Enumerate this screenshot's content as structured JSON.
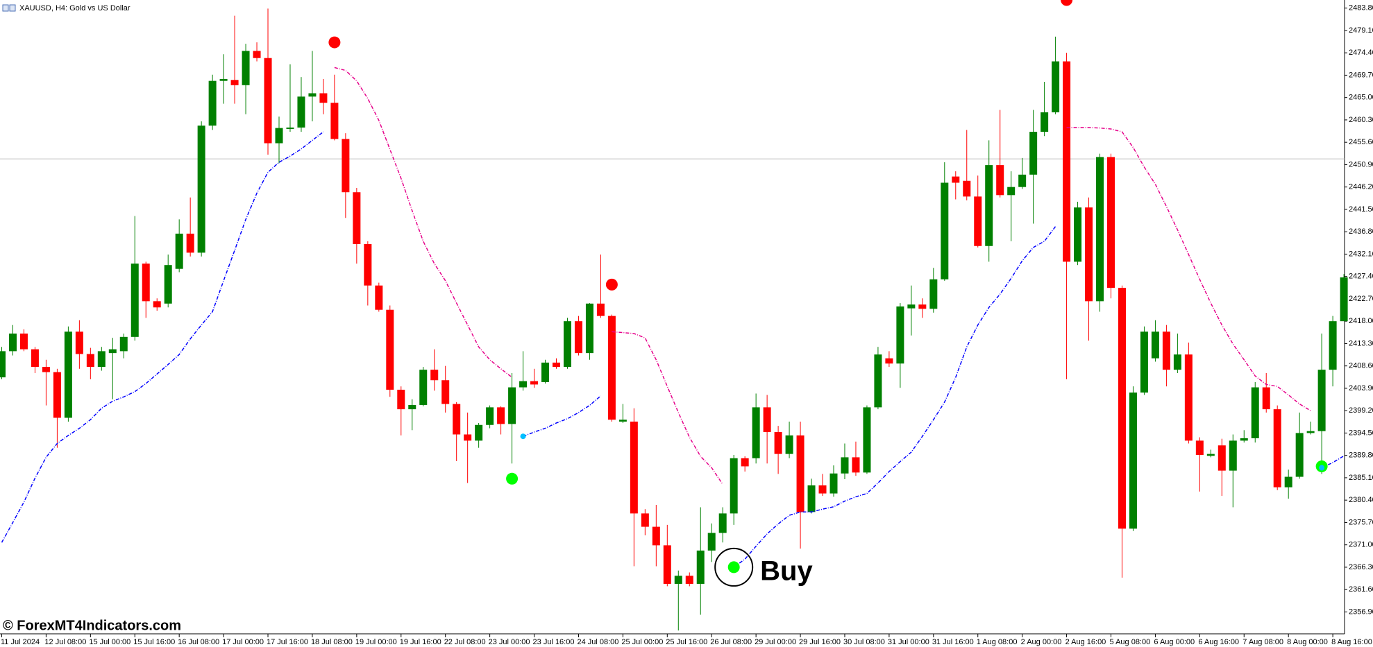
{
  "chart_data": {
    "type": "candlestick",
    "title": "XAUUSD, H4:  Gold vs US Dollar",
    "up_color": "#008000",
    "down_color": "#ff0000",
    "open": [
      2406.2,
      2411.7,
      2415.4,
      2412.1,
      2408.4,
      2407.3,
      2397.7,
      2415.8,
      2411.1,
      2408.4,
      2411.3,
      2411.7,
      2414.7,
      2430.1,
      2422.2,
      2421.7,
      2429.0,
      2436.4,
      2432.4,
      2459.1,
      2468.5,
      2468.7,
      2467.6,
      2474.8,
      2473.3,
      2455.4,
      2458.4,
      2458.7,
      2465.2,
      2465.9,
      2463.9,
      2456.3,
      2445.1,
      2434.2,
      2425.5,
      2420.4,
      2403.6,
      2399.5,
      2400.4,
      2407.8,
      2405.6,
      2400.6,
      2394.2,
      2392.9,
      2396.2,
      2399.9,
      2396.4,
      2404.1,
      2405.4,
      2405.2,
      2409.3,
      2408.4,
      2418.0,
      2411.3,
      2421.7,
      2419.1,
      2396.9,
      2396.9,
      2377.6,
      2374.8,
      2370.9,
      2362.8,
      2364.5,
      2362.8,
      2369.8,
      2373.5,
      2377.6,
      2389.2,
      2389.2,
      2399.9,
      2394.7,
      2390.1,
      2394.0,
      2377.9,
      2383.5,
      2381.8,
      2386.0,
      2389.4,
      2386.2,
      2399.9,
      2410.2,
      2409.1,
      2420.7,
      2421.5,
      2420.6,
      2426.8,
      2448.4,
      2447.5,
      2444.2,
      2433.8,
      2450.8,
      2444.5,
      2446.2,
      2448.8,
      2457.8,
      2461.9,
      2472.6,
      2430.5,
      2441.9,
      2422.2,
      2452.5,
      2425.0,
      2374.4,
      2403.0,
      2410.2,
      2415.8,
      2407.8,
      2411.0,
      2392.9,
      2389.7,
      2391.9,
      2386.6,
      2392.9,
      2393.4,
      2404.1,
      2399.5,
      2383.1,
      2385.3,
      2394.5,
      2394.9,
      2407.8,
      2418.0
    ],
    "high": [
      2412.6,
      2417.2,
      2416.3,
      2412.6,
      2409.9,
      2408.0,
      2416.9,
      2418.2,
      2412.4,
      2412.6,
      2414.5,
      2415.4,
      2440.1,
      2430.5,
      2422.8,
      2432.0,
      2439.4,
      2444.0,
      2460.0,
      2469.8,
      2474.1,
      2482.2,
      2476.3,
      2476.6,
      2483.7,
      2461.0,
      2472.0,
      2469.3,
      2474.8,
      2468.9,
      2469.8,
      2457.5,
      2446.0,
      2434.8,
      2426.1,
      2421.3,
      2404.3,
      2401.6,
      2408.4,
      2412.1,
      2408.6,
      2401.0,
      2398.8,
      2396.6,
      2400.3,
      2400.1,
      2407.1,
      2411.7,
      2408.0,
      2409.9,
      2410.2,
      2418.7,
      2419.1,
      2421.8,
      2432.0,
      2419.4,
      2400.6,
      2399.7,
      2378.5,
      2379.4,
      2375.2,
      2365.6,
      2365.2,
      2378.9,
      2375.5,
      2378.9,
      2389.9,
      2389.6,
      2402.8,
      2402.5,
      2396.0,
      2396.9,
      2396.9,
      2384.9,
      2385.9,
      2387.7,
      2392.3,
      2392.7,
      2400.3,
      2412.6,
      2411.7,
      2421.8,
      2425.5,
      2422.8,
      2429.2,
      2451.4,
      2449.5,
      2458.2,
      2448.6,
      2456.0,
      2462.4,
      2449.5,
      2452.3,
      2462.4,
      2468.3,
      2477.8,
      2474.4,
      2443.1,
      2444.0,
      2453.2,
      2453.2,
      2425.5,
      2404.3,
      2416.9,
      2418.2,
      2417.2,
      2415.4,
      2413.5,
      2393.6,
      2391.0,
      2393.3,
      2394.2,
      2395.1,
      2405.2,
      2407.1,
      2400.3,
      2386.8,
      2398.8,
      2396.9,
      2415.4,
      2419.1,
      2427.9
    ],
    "low": [
      2405.8,
      2410.8,
      2411.7,
      2407.1,
      2400.3,
      2391.4,
      2396.9,
      2408.0,
      2405.8,
      2407.6,
      2401.6,
      2410.2,
      2413.9,
      2418.7,
      2420.2,
      2420.9,
      2428.3,
      2431.6,
      2431.6,
      2458.2,
      2463.7,
      2463.7,
      2461.5,
      2472.6,
      2453.0,
      2451.2,
      2457.8,
      2457.8,
      2460.0,
      2461.5,
      2456.0,
      2439.7,
      2430.1,
      2421.3,
      2420.0,
      2402.1,
      2394.0,
      2395.1,
      2400.1,
      2403.4,
      2398.8,
      2388.6,
      2384.0,
      2391.4,
      2395.5,
      2394.2,
      2388.1,
      2403.4,
      2404.0,
      2404.9,
      2408.0,
      2408.0,
      2410.8,
      2409.9,
      2418.7,
      2396.9,
      2396.6,
      2366.5,
      2373.0,
      2366.5,
      2362.3,
      2353.0,
      2362.3,
      2356.3,
      2367.4,
      2371.5,
      2375.2,
      2386.4,
      2388.1,
      2388.1,
      2385.9,
      2389.2,
      2370.2,
      2377.6,
      2381.3,
      2381.1,
      2384.8,
      2385.5,
      2385.9,
      2399.5,
      2408.4,
      2404.0,
      2415.0,
      2418.7,
      2419.8,
      2426.5,
      2443.6,
      2443.4,
      2433.5,
      2430.5,
      2444.0,
      2434.8,
      2445.8,
      2438.5,
      2456.9,
      2461.5,
      2405.8,
      2429.8,
      2413.9,
      2420.0,
      2422.8,
      2364.1,
      2373.9,
      2402.5,
      2409.5,
      2404.3,
      2407.1,
      2392.3,
      2382.2,
      2389.4,
      2381.3,
      2378.9,
      2392.5,
      2392.5,
      2398.8,
      2382.5,
      2380.7,
      2384.9,
      2394.2,
      2385.9,
      2404.3,
      2418.2
    ],
    "close": [
      2411.7,
      2415.4,
      2412.1,
      2408.4,
      2407.3,
      2397.7,
      2415.8,
      2411.1,
      2408.4,
      2411.7,
      2412.1,
      2414.7,
      2430.1,
      2422.2,
      2420.9,
      2429.8,
      2436.4,
      2432.4,
      2459.1,
      2468.5,
      2468.9,
      2467.6,
      2474.8,
      2473.3,
      2455.4,
      2458.6,
      2458.7,
      2465.2,
      2465.9,
      2463.9,
      2456.3,
      2445.1,
      2434.2,
      2425.5,
      2420.4,
      2403.6,
      2399.5,
      2400.4,
      2407.8,
      2405.6,
      2400.6,
      2394.2,
      2392.9,
      2396.2,
      2399.9,
      2396.4,
      2404.1,
      2405.4,
      2404.7,
      2409.3,
      2408.4,
      2418.0,
      2411.3,
      2421.7,
      2419.1,
      2397.3,
      2397.3,
      2377.6,
      2374.8,
      2370.9,
      2362.8,
      2364.5,
      2362.8,
      2369.8,
      2373.5,
      2377.6,
      2389.2,
      2387.5,
      2399.9,
      2394.7,
      2390.1,
      2394.0,
      2377.9,
      2383.5,
      2381.8,
      2386.0,
      2389.4,
      2386.2,
      2399.9,
      2411.0,
      2409.1,
      2421.1,
      2421.5,
      2420.6,
      2426.8,
      2447.1,
      2447.1,
      2444.2,
      2433.8,
      2450.8,
      2444.5,
      2446.2,
      2448.8,
      2457.8,
      2461.9,
      2472.6,
      2430.5,
      2441.9,
      2422.2,
      2452.5,
      2425.0,
      2374.4,
      2403.0,
      2415.8,
      2415.8,
      2407.8,
      2411.0,
      2392.9,
      2389.9,
      2390.1,
      2386.6,
      2392.9,
      2393.4,
      2404.1,
      2399.5,
      2383.1,
      2385.3,
      2394.5,
      2394.9,
      2407.8,
      2418.0,
      2427.2
    ],
    "series": [
      {
        "color": "#0000ff",
        "values": [
          2371.5,
          2375.7,
          2380.0,
          2385.0,
          2389.4,
          2392.3,
          2394.0,
          2395.5,
          2397.3,
          2399.7,
          2401.2,
          2402.1,
          2403.2,
          2404.9,
          2406.9,
          2408.9,
          2411.0,
          2414.3,
          2417.2,
          2420.0,
          2426.5,
          2432.9,
          2439.4,
          2444.9,
          2449.3,
          2451.4,
          2452.7,
          2454.2,
          2456.0,
          2457.8,
          null,
          null,
          null,
          null,
          null,
          null,
          null,
          null,
          null,
          null,
          null,
          null,
          null,
          null,
          null,
          null,
          null,
          2393.8,
          2394.7,
          2395.5,
          2396.6,
          2397.5,
          2398.8,
          2400.3,
          2402.3,
          null,
          null,
          null,
          null,
          null,
          null,
          null,
          null,
          null,
          null,
          null,
          2366.3,
          2368.0,
          2370.7,
          2373.3,
          2375.4,
          2377.2,
          2377.9,
          2377.9,
          2378.5,
          2379.0,
          2380.2,
          2381.1,
          2381.8,
          2384.0,
          2386.4,
          2388.5,
          2390.5,
          2393.8,
          2397.3,
          2401.0,
          2406.2,
          2412.6,
          2417.2,
          2420.9,
          2423.7,
          2427.0,
          2430.7,
          2433.5,
          2434.8,
          2437.9,
          null,
          null,
          null,
          null,
          null,
          null,
          null,
          null,
          null,
          null,
          null,
          null,
          null,
          null,
          null,
          null,
          null,
          null,
          null,
          null,
          null,
          null,
          null,
          2387.2,
          2388.3,
          2389.7
        ]
      },
      {
        "color": "#e6008a",
        "values": [
          null,
          null,
          null,
          null,
          null,
          null,
          null,
          null,
          null,
          null,
          null,
          null,
          null,
          null,
          null,
          null,
          null,
          null,
          null,
          null,
          null,
          null,
          null,
          null,
          null,
          null,
          null,
          null,
          null,
          null,
          2471.3,
          2470.7,
          2468.5,
          2464.8,
          2460.2,
          2454.1,
          2448.0,
          2441.2,
          2434.8,
          2430.1,
          2426.5,
          2421.8,
          2417.2,
          2412.6,
          2409.9,
          2408.0,
          2406.2,
          null,
          null,
          null,
          null,
          null,
          null,
          null,
          null,
          2415.8,
          2415.6,
          2415.4,
          2414.5,
          2409.9,
          2404.3,
          2398.8,
          2393.6,
          2389.6,
          2387.2,
          2383.7,
          null,
          null,
          null,
          null,
          null,
          null,
          null,
          null,
          null,
          null,
          null,
          null,
          null,
          null,
          null,
          null,
          null,
          null,
          null,
          null,
          null,
          null,
          null,
          null,
          null,
          null,
          null,
          null,
          null,
          null,
          2458.7,
          2458.7,
          2458.7,
          2458.6,
          2458.4,
          2457.8,
          2454.5,
          2450.4,
          2446.8,
          2442.1,
          2437.2,
          2432.0,
          2426.8,
          2421.8,
          2417.2,
          2413.2,
          2409.9,
          2406.5,
          2404.7,
          2404.3,
          2402.5,
          2400.6,
          2399.2,
          null,
          null,
          null
        ]
      }
    ],
    "signals": [
      {
        "color": "#ff0000",
        "marker": "large",
        "x": [
          30,
          55,
          96
        ],
        "values": [
          2476.6,
          2425.7,
          2485.5
        ]
      },
      {
        "color": "#00ff00",
        "marker": "large",
        "x": [
          46,
          66,
          119
        ],
        "values": [
          2384.9,
          2366.3,
          2387.5
        ]
      },
      {
        "color": "#00bfff",
        "marker": "small",
        "x": [
          47,
          119
        ],
        "values": [
          2393.8,
          2387.2
        ]
      }
    ],
    "price_line": 2452.1,
    "annotations": [
      {
        "text": "Buy",
        "x": 66,
        "y": 2366.3
      }
    ],
    "ylim": [
      2352.3,
      2485.5
    ],
    "yticks": [
      {
        "value": 2483.8,
        "label": "2483.80"
      },
      {
        "value": 2479.1,
        "label": "2479.10"
      },
      {
        "value": 2474.4,
        "label": "2474.40"
      },
      {
        "value": 2469.7,
        "label": "2469.70"
      },
      {
        "value": 2465.0,
        "label": "2465.00"
      },
      {
        "value": 2460.3,
        "label": "2460.30"
      },
      {
        "value": 2455.6,
        "label": "2455.60"
      },
      {
        "value": 2450.9,
        "label": "2450.90"
      },
      {
        "value": 2446.2,
        "label": "2446.20"
      },
      {
        "value": 2441.5,
        "label": "2441.50"
      },
      {
        "value": 2436.8,
        "label": "2436.80"
      },
      {
        "value": 2432.1,
        "label": "2432.10"
      },
      {
        "value": 2427.4,
        "label": "2427.40"
      },
      {
        "value": 2422.7,
        "label": "2422.70"
      },
      {
        "value": 2418.0,
        "label": "2418.00"
      },
      {
        "value": 2413.3,
        "label": "2413.30"
      },
      {
        "value": 2408.6,
        "label": "2408.60"
      },
      {
        "value": 2403.9,
        "label": "2403.90"
      },
      {
        "value": 2399.2,
        "label": "2399.20"
      },
      {
        "value": 2394.5,
        "label": "2394.50"
      },
      {
        "value": 2389.8,
        "label": "2389.80"
      },
      {
        "value": 2385.1,
        "label": "2385.10"
      },
      {
        "value": 2380.4,
        "label": "2380.40"
      },
      {
        "value": 2375.7,
        "label": "2375.70"
      },
      {
        "value": 2371.0,
        "label": "2371.00"
      },
      {
        "value": 2366.3,
        "label": "2366.30"
      },
      {
        "value": 2361.6,
        "label": "2361.60"
      },
      {
        "value": 2356.9,
        "label": "2356.90"
      }
    ],
    "xticks": [
      {
        "value": 0,
        "label": "11 Jul 2024"
      },
      {
        "value": 4,
        "label": "12 Jul 08:00"
      },
      {
        "value": 8,
        "label": "15 Jul 00:00"
      },
      {
        "value": 12,
        "label": "15 Jul 16:00"
      },
      {
        "value": 16,
        "label": "16 Jul 08:00"
      },
      {
        "value": 20,
        "label": "17 Jul 00:00"
      },
      {
        "value": 24,
        "label": "17 Jul 16:00"
      },
      {
        "value": 28,
        "label": "18 Jul 08:00"
      },
      {
        "value": 32,
        "label": "19 Jul 00:00"
      },
      {
        "value": 36,
        "label": "19 Jul 16:00"
      },
      {
        "value": 40,
        "label": "22 Jul 08:00"
      },
      {
        "value": 44,
        "label": "23 Jul 00:00"
      },
      {
        "value": 48,
        "label": "23 Jul 16:00"
      },
      {
        "value": 52,
        "label": "24 Jul 08:00"
      },
      {
        "value": 56,
        "label": "25 Jul 00:00"
      },
      {
        "value": 60,
        "label": "25 Jul 16:00"
      },
      {
        "value": 64,
        "label": "26 Jul 08:00"
      },
      {
        "value": 68,
        "label": "29 Jul 00:00"
      },
      {
        "value": 72,
        "label": "29 Jul 16:00"
      },
      {
        "value": 76,
        "label": "30 Jul 08:00"
      },
      {
        "value": 80,
        "label": "31 Jul 00:00"
      },
      {
        "value": 84,
        "label": "31 Jul 16:00"
      },
      {
        "value": 88,
        "label": "1 Aug 08:00"
      },
      {
        "value": 92,
        "label": "2 Aug 00:00"
      },
      {
        "value": 96,
        "label": "2 Aug 16:00"
      },
      {
        "value": 100,
        "label": "5 Aug 08:00"
      },
      {
        "value": 104,
        "label": "6 Aug 00:00"
      },
      {
        "value": 108,
        "label": "6 Aug 16:00"
      },
      {
        "value": 112,
        "label": "7 Aug 08:00"
      },
      {
        "value": 116,
        "label": "8 Aug 00:00"
      },
      {
        "value": 120,
        "label": "8 Aug 16:00"
      }
    ]
  },
  "watermark": "© ForexMT4Indicators.com"
}
